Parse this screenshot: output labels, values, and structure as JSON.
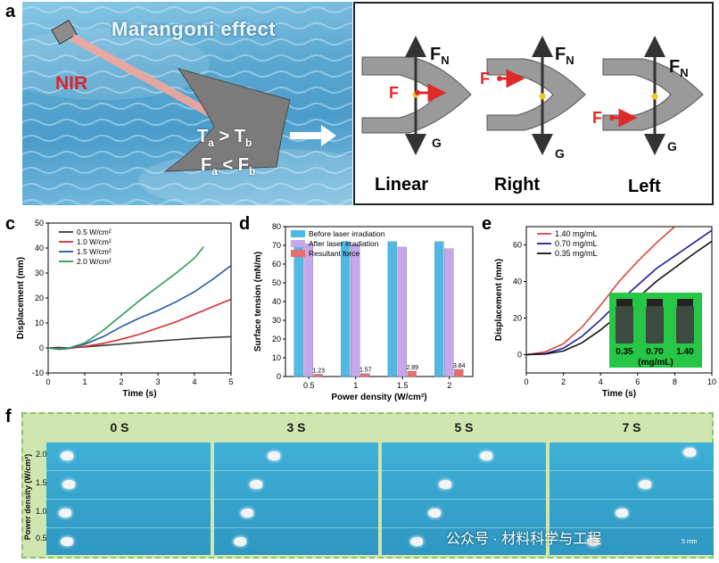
{
  "panel_labels": {
    "a": "a",
    "b": "b",
    "c": "c",
    "d": "d",
    "e": "e",
    "f": "f"
  },
  "panel_a": {
    "title": "Marangoni effect",
    "nir_label": "NIR",
    "ineq1": {
      "left": "T",
      "left_sub": "a",
      "op": ">",
      "right": "T",
      "right_sub": "b"
    },
    "ineq2": {
      "left": "F",
      "left_sub": "a",
      "op": "<",
      "right": "F",
      "right_sub": "b"
    },
    "colors": {
      "water": "#6fb6d8",
      "laser": "#f08a80",
      "robot": "#7b7b7b"
    }
  },
  "panel_b": {
    "force_normal": "F",
    "force_normal_sub": "N",
    "force_F": "F",
    "gravity": "G",
    "cases": [
      "Linear",
      "Right",
      "Left"
    ],
    "colors": {
      "body": "#9a9a9a",
      "arrow": "#333333",
      "force": "#e02a2a",
      "center": "#f3c623"
    }
  },
  "chart_data": [
    {
      "type": "line",
      "panel": "c",
      "xlabel": "Time (s)",
      "ylabel": "Displacement (mm)",
      "xlim": [
        0,
        5
      ],
      "ylim": [
        -10,
        50
      ],
      "xticks": [
        "0",
        "1",
        "2",
        "3",
        "4",
        "5"
      ],
      "yticks": [
        "-10",
        "0",
        "10",
        "20",
        "30",
        "40",
        "50"
      ],
      "legend_position": "top-left",
      "series": [
        {
          "name": "0.5 W/cm²",
          "color": "#3a3a3a",
          "x": [
            0,
            0.3,
            0.5,
            1,
            1.5,
            2,
            2.5,
            3,
            3.5,
            4,
            4.5,
            5
          ],
          "y": [
            0,
            0.2,
            0,
            0.4,
            1,
            1.6,
            2.2,
            2.8,
            3.3,
            3.8,
            4.2,
            4.5
          ]
        },
        {
          "name": "1.0 W/cm²",
          "color": "#d62f2f",
          "x": [
            0,
            0.3,
            0.5,
            1,
            1.5,
            2,
            2.5,
            3,
            3.5,
            4,
            4.5,
            5
          ],
          "y": [
            0,
            -0.5,
            -0.3,
            0.6,
            1.8,
            3.5,
            5.5,
            8,
            10.5,
            13.5,
            16.5,
            19.5
          ]
        },
        {
          "name": "1.5 W/cm²",
          "color": "#1f5aa6",
          "x": [
            0,
            0.3,
            0.5,
            1,
            1.5,
            2,
            2.5,
            3,
            3.5,
            4,
            4.5,
            5
          ],
          "y": [
            0,
            -0.5,
            -0.3,
            1.5,
            4.5,
            8.5,
            12,
            15,
            18.5,
            22.5,
            27.5,
            33
          ]
        },
        {
          "name": "2.0 W/cm²",
          "color": "#2e9a57",
          "x": [
            0,
            0.3,
            0.5,
            1,
            1.5,
            2,
            2.5,
            3,
            3.5,
            4,
            4.25
          ],
          "y": [
            0,
            -0.5,
            -0.3,
            2,
            7,
            13,
            19,
            24.5,
            30,
            36,
            40.5
          ]
        }
      ]
    },
    {
      "type": "bar",
      "panel": "d",
      "xlabel": "Power density (W/cm²)",
      "ylabel": "Surface tension (mN/m)",
      "categories": [
        "0.5",
        "1",
        "1.5",
        "2"
      ],
      "ylim": [
        0,
        80
      ],
      "yticks": [
        "0",
        "10",
        "20",
        "30",
        "40",
        "50",
        "60",
        "70",
        "80"
      ],
      "legend_position": "top",
      "series": [
        {
          "name": "Before laser irradiation",
          "color": "#4fb8e3",
          "values": [
            72,
            72,
            72,
            72
          ]
        },
        {
          "name": "After laser irradiation",
          "color": "#c8a6ea",
          "values": [
            70.8,
            70.4,
            69.1,
            68.2
          ]
        },
        {
          "name": "Resultant force",
          "color": "#ee6b6b",
          "values": [
            1.23,
            1.57,
            2.89,
            3.84
          ],
          "data_labels": [
            "1.23",
            "1.57",
            "2.89",
            "3.84"
          ]
        }
      ]
    },
    {
      "type": "line",
      "panel": "e",
      "xlabel": "Time (s)",
      "ylabel": "Displacement (mm)",
      "xlim": [
        0,
        10
      ],
      "ylim": [
        -10,
        70
      ],
      "xticks": [
        "0",
        "2",
        "4",
        "6",
        "8",
        "10"
      ],
      "yticks": [
        "0",
        "20",
        "40",
        "60"
      ],
      "legend_position": "top-left",
      "series": [
        {
          "name": "1.40 mg/mL",
          "color": "#d64545",
          "x": [
            0,
            1,
            2,
            3,
            4,
            5,
            6,
            7,
            8
          ],
          "y": [
            0,
            1.5,
            6,
            15,
            27,
            40,
            51,
            61,
            70
          ]
        },
        {
          "name": "0.70 mg/mL",
          "color": "#1c1c9c",
          "x": [
            0,
            1,
            2,
            3,
            4,
            5,
            6,
            7,
            8,
            9,
            10
          ],
          "y": [
            0,
            0.5,
            3.5,
            10,
            19,
            29,
            38,
            47,
            54,
            61,
            68
          ]
        },
        {
          "name": "0.35 mg/mL",
          "color": "#111111",
          "x": [
            0,
            1,
            2,
            3,
            4,
            5,
            6,
            7,
            8,
            9,
            10
          ],
          "y": [
            0,
            0.3,
            2,
            6.5,
            13.5,
            22,
            31,
            40,
            47.5,
            55,
            62
          ]
        }
      ],
      "inset": {
        "labels": [
          "0.35",
          "0.70",
          "1.40"
        ],
        "unit": "(mg/mL)",
        "background": "#27c646"
      }
    }
  ],
  "panel_f": {
    "times": [
      "0 S",
      "3 S",
      "5 S",
      "7 S"
    ],
    "y_axis_label": "Power density (W/cm²)",
    "row_labels": [
      "2.0",
      "1.5",
      "1.0",
      "0.5"
    ],
    "scale_bar": "5 mm",
    "header_color": "#cfe6b0",
    "border_color": "#8fc06a",
    "water_color": "#3aa6cc"
  },
  "watermark": "公众号 · 材料科学与工程"
}
